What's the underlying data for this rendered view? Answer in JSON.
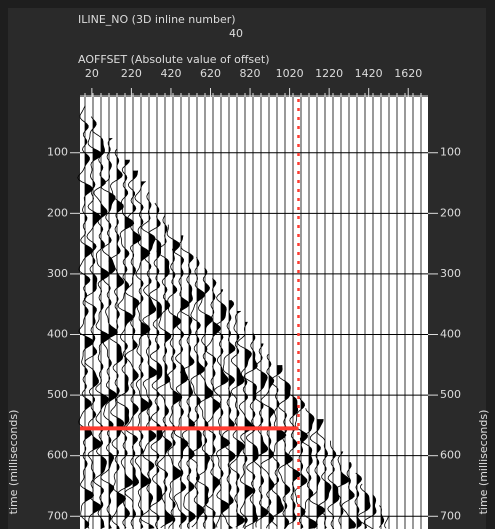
{
  "chart_data": {
    "type": "seismic-wiggle",
    "header_label": "ILINE_NO (3D inline number)",
    "header_value": 40,
    "x_label": "AOFFSET (Absolute value of offset)",
    "y_label": "time (milliseconds)",
    "xlim": [
      -40,
      1720
    ],
    "xticks": [
      20,
      220,
      420,
      620,
      820,
      1020,
      1220,
      1420,
      1620
    ],
    "ylim": [
      8,
      721
    ],
    "yticks": [
      100,
      200,
      300,
      400,
      500,
      600,
      700
    ],
    "grid": true,
    "pick": {
      "color": "#ff3b30",
      "time": 555,
      "offset": 1065
    }
  }
}
